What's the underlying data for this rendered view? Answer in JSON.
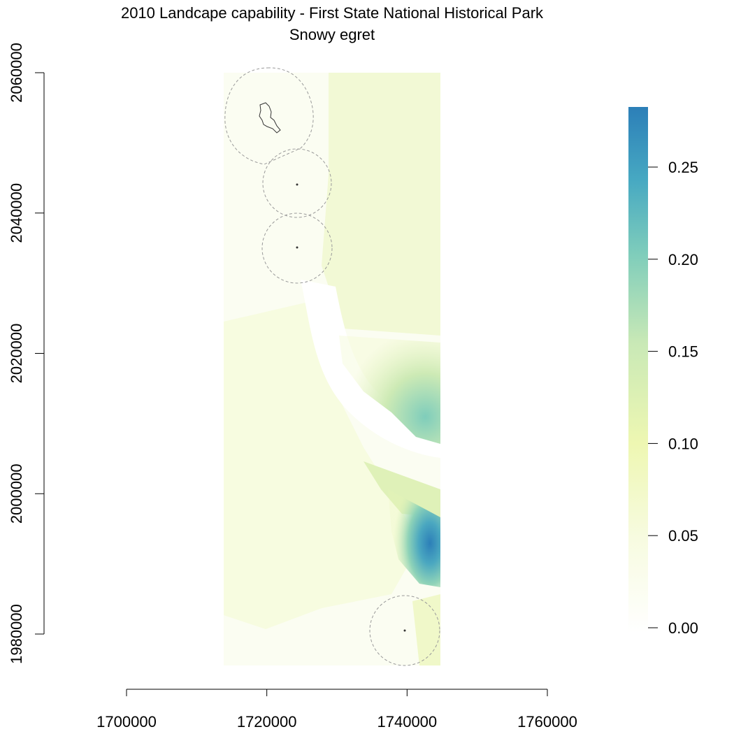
{
  "title": "2010 Landcape capability - First State National Historical Park",
  "subtitle": "Snowy egret",
  "map": {
    "x_axis": {
      "range": [
        1700000,
        1760000
      ],
      "ticks": [
        "1700000",
        "1720000",
        "1740000",
        "1760000"
      ]
    },
    "y_axis": {
      "range": [
        1980000,
        2060000
      ],
      "ticks": [
        "1980000",
        "2000000",
        "2020000",
        "2040000",
        "2060000"
      ]
    },
    "raster_extent": {
      "x": [
        1714000,
        1745000
      ],
      "y": [
        1975500,
        2060000
      ]
    },
    "buffers": [
      {
        "name": "north-buffer",
        "center": [
          1719500,
          2053200
        ]
      },
      {
        "name": "middle-buffer-1",
        "center": [
          1724300,
          2044200
        ]
      },
      {
        "name": "middle-buffer-2",
        "center": [
          1724300,
          2035000
        ]
      },
      {
        "name": "south-buffer",
        "center": [
          1739700,
          1980500
        ]
      }
    ],
    "buffer_style": "dashed grey",
    "park_units": "black outline"
  },
  "legend": {
    "range": [
      0,
      0.282
    ],
    "ticks": [
      "0.00",
      "0.05",
      "0.10",
      "0.15",
      "0.20",
      "0.25"
    ],
    "colors": [
      "#ffffd9",
      "#edf8b1",
      "#c7e9b4",
      "#7fcdbb",
      "#41b6c4",
      "#1d91c0",
      "#2c7fb8"
    ]
  }
}
